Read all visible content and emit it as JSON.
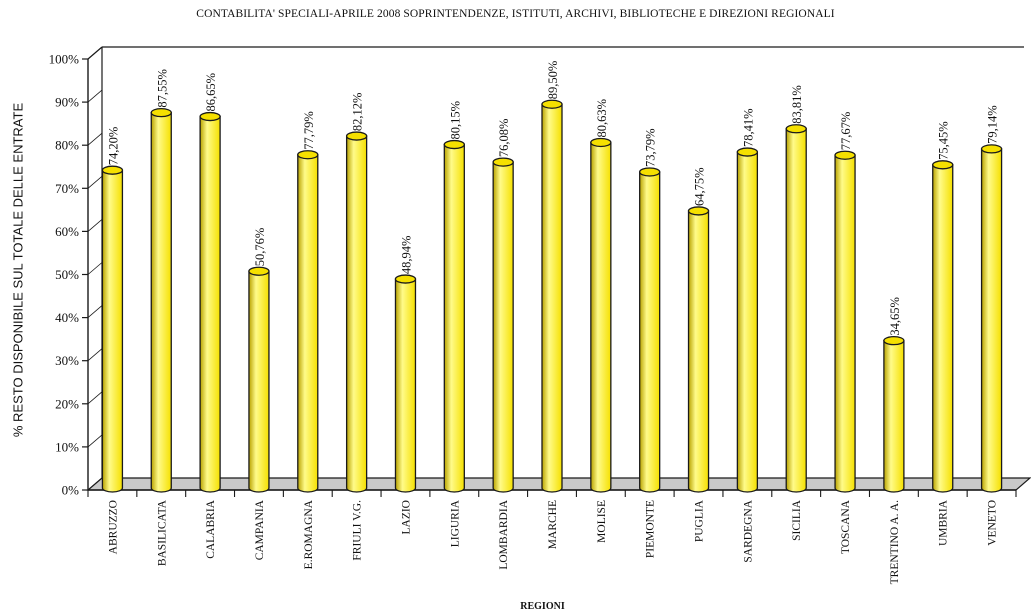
{
  "chart_data": {
    "type": "bar",
    "title": "CONTABILITA' SPECIALI-APRILE 2008  SOPRINTENDENZE, ISTITUTI, ARCHIVI, BIBLIOTECHE E DIREZIONI REGIONALI",
    "xlabel": "REGIONI",
    "ylabel": "% RESTO DISPONIBILE SUL TOTALE DELLE ENTRATE",
    "ylim": [
      0,
      100
    ],
    "yticks": [
      "0%",
      "10%",
      "20%",
      "30%",
      "40%",
      "50%",
      "60%",
      "70%",
      "80%",
      "90%",
      "100%"
    ],
    "grid": false,
    "categories": [
      "ABRUZZO",
      "BASILICATA",
      "CALABRIA",
      "CAMPANIA",
      "E.ROMAGNA",
      "FRIULI V.G.",
      "LAZIO",
      "LIGURIA",
      "LOMBARDIA",
      "MARCHE",
      "MOLISE",
      "PIEMONTE",
      "PUGLIA",
      "SARDEGNA",
      "SICILIA",
      "TOSCANA",
      "TRENTINO A. A.",
      "UMBRIA",
      "VENETO"
    ],
    "values": [
      74.2,
      87.55,
      86.65,
      50.76,
      77.79,
      82.12,
      48.94,
      80.15,
      76.08,
      89.5,
      80.63,
      73.79,
      64.75,
      78.41,
      83.81,
      77.67,
      34.65,
      75.45,
      79.14
    ],
    "labels": [
      "74,20%",
      "87,55%",
      "86,65%",
      "50,76%",
      "77,79%",
      "82,12%",
      "48,94%",
      "80,15%",
      "76,08%",
      "89,50%",
      "80,63%",
      "73,79%",
      "64,75%",
      "78,41%",
      "83,81%",
      "77,67%",
      "34,65%",
      "75,45%",
      "79,14%"
    ],
    "colors": {
      "bar": "#f5e000",
      "bar_highlight": "#fffb8a",
      "bar_shadow": "#b8a200",
      "outline": "#1a1a1a",
      "floor": "#c9c9c9"
    }
  }
}
